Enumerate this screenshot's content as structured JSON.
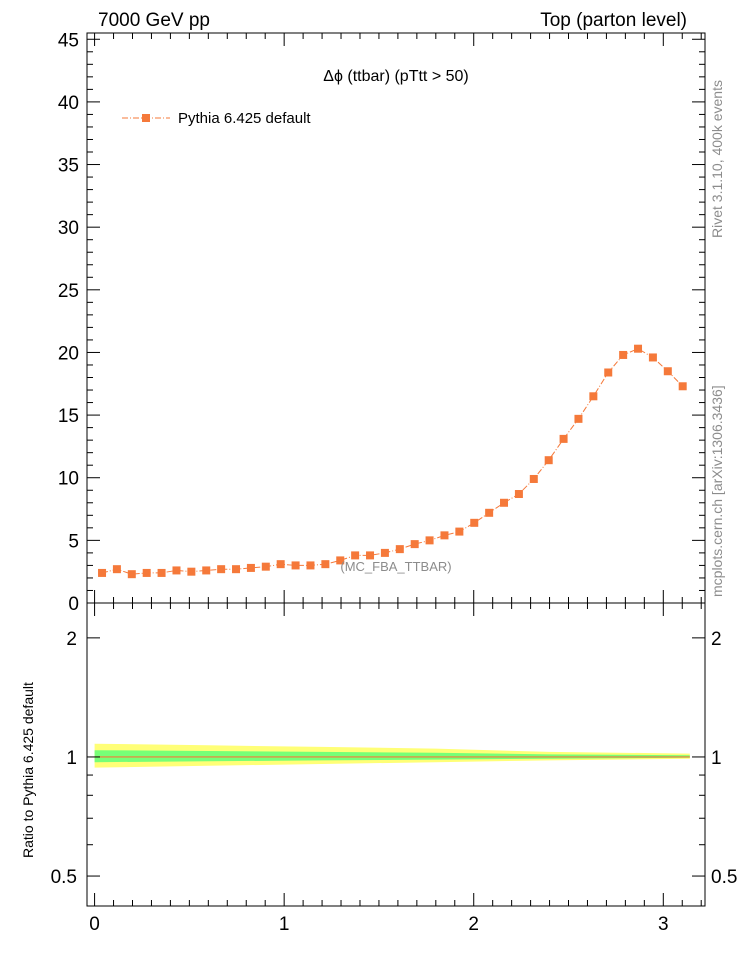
{
  "header": {
    "left": "7000 GeV pp",
    "right": "Top (parton level)"
  },
  "side_labels": {
    "rivet": "Rivet 3.1.10, 400k events",
    "mcplots": "mcplots.cern.ch [arXiv:1306.3436]"
  },
  "chart_data": {
    "type": "scatter",
    "title": "Δϕ (ttbar) (pTtt > 50)",
    "watermark": "(MC_FBA_TTBAR)",
    "xlim": [
      -0.04,
      3.22
    ],
    "ylim": [
      0,
      45.5
    ],
    "x_ticks": [
      0,
      1,
      2,
      3
    ],
    "y_ticks": [
      0,
      5,
      10,
      15,
      20,
      25,
      30,
      35,
      40,
      45
    ],
    "legend": {
      "label": "Pythia 6.425 default",
      "placement": "top-left"
    },
    "series": [
      {
        "name": "Pythia 6.425 default",
        "color": "#f5793a",
        "x": [
          0.0393,
          0.1178,
          0.1963,
          0.2749,
          0.3534,
          0.432,
          0.5105,
          0.589,
          0.6676,
          0.7461,
          0.8247,
          0.9032,
          0.9817,
          1.0603,
          1.1388,
          1.2174,
          1.2959,
          1.3744,
          1.453,
          1.5315,
          1.6101,
          1.6886,
          1.7671,
          1.8457,
          1.9242,
          2.0028,
          2.0813,
          2.1598,
          2.2384,
          2.3169,
          2.3955,
          2.474,
          2.5525,
          2.6311,
          2.7096,
          2.7882,
          2.8667,
          2.9452,
          3.0238,
          3.1023
        ],
        "y": [
          2.4,
          2.7,
          2.3,
          2.4,
          2.4,
          2.6,
          2.5,
          2.6,
          2.7,
          2.7,
          2.8,
          2.9,
          3.1,
          3.0,
          3.0,
          3.1,
          3.4,
          3.8,
          3.8,
          4.0,
          4.3,
          4.7,
          5.0,
          5.4,
          5.7,
          6.4,
          7.2,
          8.0,
          8.7,
          9.9,
          11.4,
          13.1,
          14.7,
          16.5,
          18.4,
          19.8,
          20.3,
          19.6,
          18.5,
          17.3
        ]
      }
    ],
    "ratio": {
      "ylabel": "Ratio to Pythia 6.425 default",
      "ylim": [
        0.42,
        2.45
      ],
      "y_ticks": [
        0.5,
        1,
        2
      ],
      "band_colors": {
        "outer": "#ffff77",
        "inner": "#77ff77",
        "line": "#f5793a"
      },
      "band_x": [
        0.0,
        0.6,
        1.2,
        1.8,
        2.4,
        3.14
      ],
      "outer_lo": [
        0.94,
        0.95,
        0.96,
        0.97,
        0.98,
        0.99
      ],
      "outer_hi": [
        1.08,
        1.07,
        1.06,
        1.05,
        1.03,
        1.02
      ],
      "inner_lo": [
        0.97,
        0.975,
        0.98,
        0.985,
        0.99,
        0.995
      ],
      "inner_hi": [
        1.04,
        1.035,
        1.03,
        1.025,
        1.015,
        1.01
      ]
    }
  }
}
